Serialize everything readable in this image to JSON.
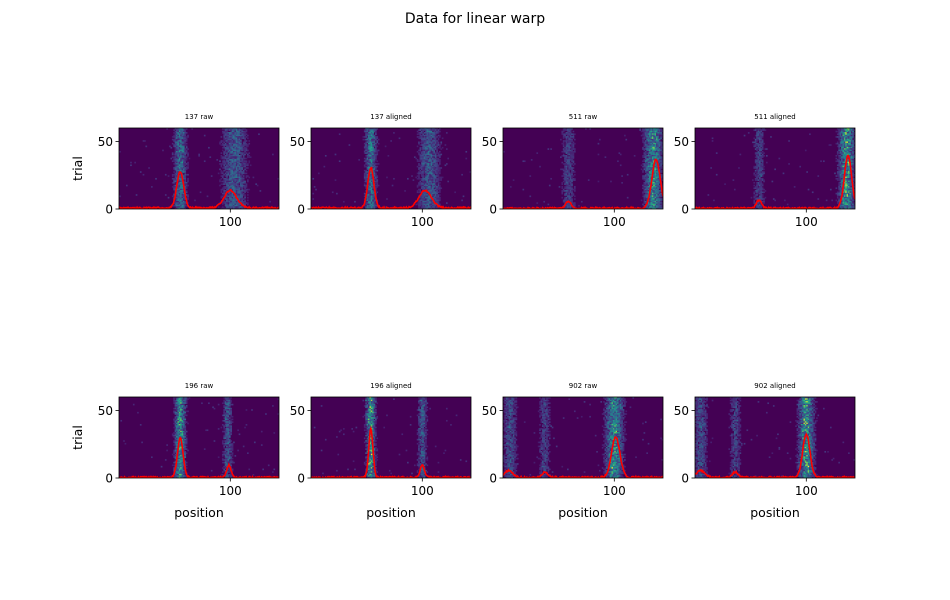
{
  "figure": {
    "suptitle": "Data for linear warp"
  },
  "chart_data": [
    {
      "type": "heatmap",
      "title": "137 raw",
      "xlabel": "",
      "ylabel": "trial",
      "xlim": [
        20,
        135
      ],
      "ylim": [
        0,
        60
      ],
      "xticks": [
        100
      ],
      "yticks": [
        0,
        50
      ],
      "colormap": "viridis",
      "background_color": "#440154",
      "line_color": "#ff0000",
      "bands": [
        {
          "center": 64,
          "width": 3.0,
          "intensity": 0.45
        },
        {
          "center": 103,
          "width": 6.0,
          "intensity": 0.35
        }
      ],
      "mean_curve": {
        "baseline": 0.8,
        "peaks": [
          {
            "x": 64,
            "height": 27,
            "width": 2.5
          },
          {
            "x": 100,
            "height": 13,
            "width": 4.5
          }
        ]
      }
    },
    {
      "type": "heatmap",
      "title": "137 aligned",
      "xlabel": "",
      "ylabel": "",
      "xlim": [
        20,
        135
      ],
      "ylim": [
        0,
        60
      ],
      "xticks": [
        100
      ],
      "yticks": [
        0,
        50
      ],
      "colormap": "viridis",
      "background_color": "#440154",
      "line_color": "#ff0000",
      "bands": [
        {
          "center": 63,
          "width": 2.5,
          "intensity": 0.5
        },
        {
          "center": 105,
          "width": 5.0,
          "intensity": 0.35
        }
      ],
      "mean_curve": {
        "baseline": 0.8,
        "peaks": [
          {
            "x": 63,
            "height": 30,
            "width": 2.2
          },
          {
            "x": 102,
            "height": 13,
            "width": 4.5
          }
        ]
      }
    },
    {
      "type": "heatmap",
      "title": "511 raw",
      "xlabel": "",
      "ylabel": "",
      "xlim": [
        20,
        135
      ],
      "ylim": [
        0,
        60
      ],
      "xticks": [
        100
      ],
      "yticks": [
        0,
        50
      ],
      "colormap": "viridis",
      "background_color": "#440154",
      "line_color": "#ff0000",
      "bands": [
        {
          "center": 67,
          "width": 3.0,
          "intensity": 0.25
        },
        {
          "center": 128,
          "width": 4.0,
          "intensity": 0.6
        }
      ],
      "mean_curve": {
        "baseline": 0.6,
        "peaks": [
          {
            "x": 67,
            "height": 5,
            "width": 2.0
          },
          {
            "x": 130,
            "height": 36,
            "width": 3.0
          }
        ]
      }
    },
    {
      "type": "heatmap",
      "title": "511 aligned",
      "xlabel": "",
      "ylabel": "",
      "xlim": [
        20,
        135
      ],
      "ylim": [
        0,
        60
      ],
      "xticks": [
        100
      ],
      "yticks": [
        0,
        50
      ],
      "colormap": "viridis",
      "background_color": "#440154",
      "line_color": "#ff0000",
      "bands": [
        {
          "center": 66,
          "width": 2.5,
          "intensity": 0.25
        },
        {
          "center": 129,
          "width": 3.5,
          "intensity": 0.65
        }
      ],
      "mean_curve": {
        "baseline": 0.6,
        "peaks": [
          {
            "x": 66,
            "height": 6,
            "width": 1.8
          },
          {
            "x": 130,
            "height": 39,
            "width": 2.6
          }
        ]
      }
    },
    {
      "type": "heatmap",
      "title": "196 raw",
      "xlabel": "position",
      "ylabel": "trial",
      "xlim": [
        20,
        135
      ],
      "ylim": [
        0,
        60
      ],
      "xticks": [
        100
      ],
      "yticks": [
        0,
        50
      ],
      "colormap": "viridis",
      "background_color": "#440154",
      "line_color": "#ff0000",
      "bands": [
        {
          "center": 64,
          "width": 2.5,
          "intensity": 0.6
        },
        {
          "center": 98,
          "width": 2.0,
          "intensity": 0.35
        }
      ],
      "mean_curve": {
        "baseline": 0.5,
        "peaks": [
          {
            "x": 64,
            "height": 29,
            "width": 2.0
          },
          {
            "x": 99,
            "height": 9,
            "width": 1.5
          }
        ]
      }
    },
    {
      "type": "heatmap",
      "title": "196 aligned",
      "xlabel": "position",
      "ylabel": "",
      "xlim": [
        20,
        135
      ],
      "ylim": [
        0,
        60
      ],
      "xticks": [
        100
      ],
      "yticks": [
        0,
        50
      ],
      "colormap": "viridis",
      "background_color": "#440154",
      "line_color": "#ff0000",
      "bands": [
        {
          "center": 63,
          "width": 2.0,
          "intensity": 0.7
        },
        {
          "center": 100,
          "width": 2.0,
          "intensity": 0.35
        }
      ],
      "mean_curve": {
        "baseline": 0.5,
        "peaks": [
          {
            "x": 63,
            "height": 36,
            "width": 1.5
          },
          {
            "x": 100,
            "height": 9,
            "width": 1.5
          }
        ]
      }
    },
    {
      "type": "heatmap",
      "title": "902 raw",
      "xlabel": "position",
      "ylabel": "",
      "xlim": [
        20,
        135
      ],
      "ylim": [
        0,
        60
      ],
      "xticks": [
        100
      ],
      "yticks": [
        0,
        50
      ],
      "colormap": "viridis",
      "background_color": "#440154",
      "line_color": "#ff0000",
      "bands": [
        {
          "center": 25,
          "width": 3.0,
          "intensity": 0.3
        },
        {
          "center": 50,
          "width": 2.5,
          "intensity": 0.25
        },
        {
          "center": 100,
          "width": 4.0,
          "intensity": 0.6
        }
      ],
      "mean_curve": {
        "baseline": 0.5,
        "peaks": [
          {
            "x": 24,
            "height": 5,
            "width": 3.0
          },
          {
            "x": 50,
            "height": 4,
            "width": 2.0
          },
          {
            "x": 101,
            "height": 30,
            "width": 3.0
          }
        ]
      }
    },
    {
      "type": "heatmap",
      "title": "902 aligned",
      "xlabel": "position",
      "ylabel": "",
      "xlim": [
        20,
        135
      ],
      "ylim": [
        0,
        60
      ],
      "xticks": [
        100
      ],
      "yticks": [
        0,
        50
      ],
      "colormap": "viridis",
      "background_color": "#440154",
      "line_color": "#ff0000",
      "bands": [
        {
          "center": 24,
          "width": 3.0,
          "intensity": 0.3
        },
        {
          "center": 49,
          "width": 2.5,
          "intensity": 0.25
        },
        {
          "center": 100,
          "width": 3.5,
          "intensity": 0.65
        }
      ],
      "mean_curve": {
        "baseline": 0.5,
        "peaks": [
          {
            "x": 24,
            "height": 5,
            "width": 3.0
          },
          {
            "x": 49,
            "height": 4,
            "width": 2.0
          },
          {
            "x": 100,
            "height": 32,
            "width": 2.6
          }
        ]
      }
    }
  ]
}
